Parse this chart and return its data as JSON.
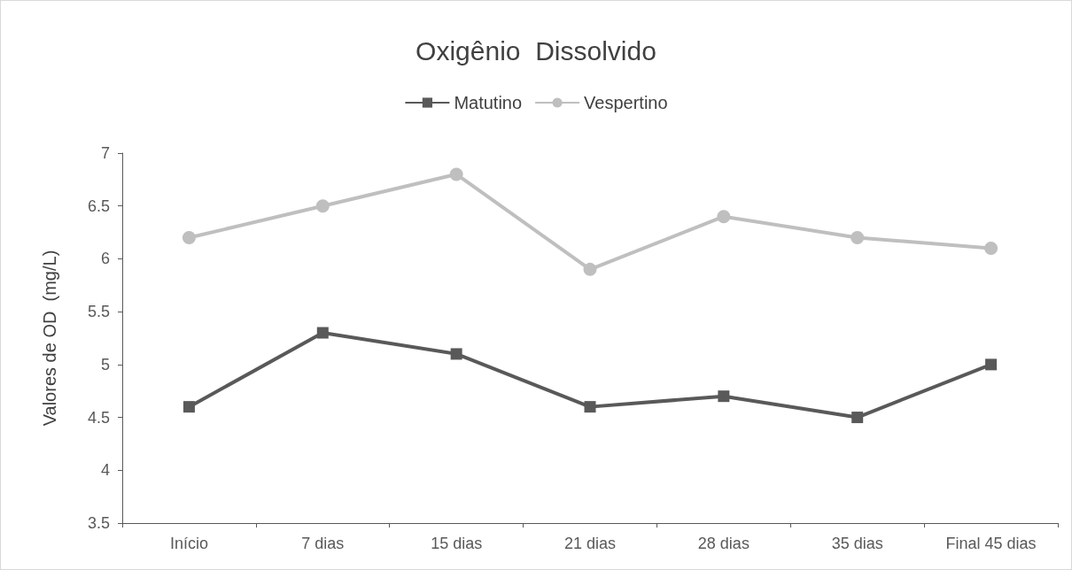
{
  "chart_data": {
    "type": "line",
    "title": "Oxigênio  Dissolvido",
    "ylabel": "Valores de OD  (mg/L)",
    "categories": [
      "Início",
      "7 dias",
      "15 dias",
      "21 dias",
      "28 dias",
      "35 dias",
      "Final 45 dias"
    ],
    "series": [
      {
        "name": "Matutino",
        "color": "#595959",
        "marker": "square",
        "values": [
          4.6,
          5.3,
          5.1,
          4.6,
          4.7,
          4.5,
          5.0
        ]
      },
      {
        "name": "Vespertino",
        "color": "#bfbfbf",
        "marker": "circle",
        "values": [
          6.2,
          6.5,
          6.8,
          5.9,
          6.4,
          6.2,
          6.1
        ]
      }
    ],
    "ylim": [
      3.5,
      7
    ],
    "yticks": [
      3.5,
      4,
      4.5,
      5,
      5.5,
      6,
      6.5,
      7
    ],
    "grid": false,
    "legend": "top",
    "line_style": "solid"
  }
}
